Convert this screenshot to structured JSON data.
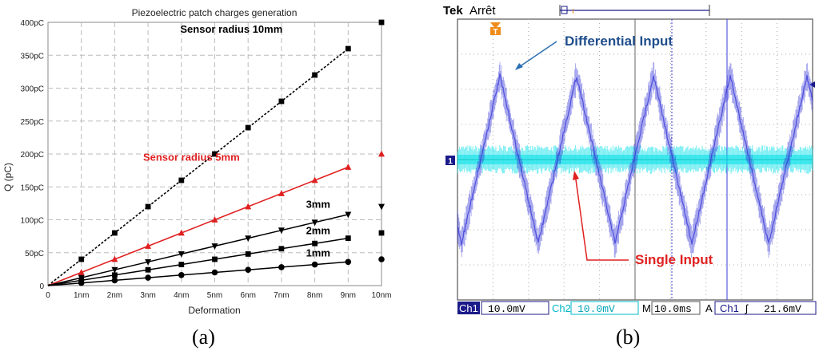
{
  "chart_data": [
    {
      "type": "line",
      "title": "Piezoelectric patch charges generation",
      "xlabel": "Deformation",
      "ylabel": "Q (pC)",
      "x_categories": [
        "0",
        "1nm",
        "2nm",
        "3nm",
        "4nm",
        "5nm",
        "6nm",
        "7nm",
        "8nm",
        "9nm",
        "10nm"
      ],
      "y_ticks": [
        "0",
        "50pC",
        "100pC",
        "150pC",
        "200pC",
        "250pC",
        "300pC",
        "350pC",
        "400pC"
      ],
      "ylim": [
        0,
        400
      ],
      "grid": true,
      "series": [
        {
          "name": "Sensor radius 10mm",
          "color": "#000000",
          "dashed": true,
          "marker": "square",
          "x": [
            0,
            1,
            2,
            3,
            4,
            5,
            6,
            7,
            8,
            9,
            10
          ],
          "y": [
            0,
            40,
            80,
            120,
            160,
            200,
            240,
            280,
            320,
            360,
            400
          ]
        },
        {
          "name": "Sensor radius 5mm",
          "color": "#e02020",
          "dashed": false,
          "marker": "triangle-up",
          "x": [
            0,
            1,
            2,
            3,
            4,
            5,
            6,
            7,
            8,
            9,
            10
          ],
          "y": [
            0,
            20,
            40,
            60,
            80,
            100,
            120,
            140,
            160,
            180,
            200
          ]
        },
        {
          "name": "3mm",
          "color": "#000000",
          "dashed": false,
          "marker": "triangle-down",
          "x": [
            0,
            1,
            2,
            3,
            4,
            5,
            6,
            7,
            8,
            9,
            10
          ],
          "y": [
            0,
            12,
            24,
            36,
            48,
            60,
            72,
            84,
            96,
            108,
            120
          ]
        },
        {
          "name": "2mm",
          "color": "#000000",
          "dashed": false,
          "marker": "square",
          "x": [
            0,
            1,
            2,
            3,
            4,
            5,
            6,
            7,
            8,
            9,
            10
          ],
          "y": [
            0,
            8,
            16,
            24,
            32,
            40,
            48,
            56,
            64,
            72,
            80
          ]
        },
        {
          "name": "1mm",
          "color": "#000000",
          "dashed": false,
          "marker": "circle",
          "x": [
            0,
            1,
            2,
            3,
            4,
            5,
            6,
            7,
            8,
            9,
            10
          ],
          "y": [
            0,
            4,
            8,
            12,
            16,
            20,
            24,
            28,
            32,
            36,
            40
          ]
        }
      ],
      "panel_label": "(a)"
    },
    {
      "type": "line",
      "header": {
        "brand": "Tek",
        "status": "Arrêt"
      },
      "trigger_marker": "T",
      "channel_marker": "1",
      "annotations": {
        "differential": "Differential Input",
        "single": "Single Input"
      },
      "colors": {
        "ch1": "#3a3ad8",
        "ch2": "#00e0e8",
        "differential_label": "#1f4e8c",
        "single_label": "#e02020",
        "screen_bg": "#ffffff"
      },
      "status_bar": {
        "ch1_label": "Ch1",
        "ch1_value": "10.0mV",
        "ch2_label": "Ch2",
        "ch2_value": "10.0mV",
        "m_label": "M",
        "m_value": "10.0ms",
        "a_label": "A",
        "trig_source": "Ch1",
        "trig_slope": "ʃ",
        "trig_level": "21.6mV"
      },
      "series": [
        {
          "name": "Differential Input",
          "shape": "periodic noisy triangle",
          "amplitude_mV": 14,
          "period_ms": 22
        },
        {
          "name": "Single Input",
          "shape": "flat noisy band",
          "amplitude_mV": 1.5
        }
      ],
      "panel_label": "(b)"
    }
  ]
}
